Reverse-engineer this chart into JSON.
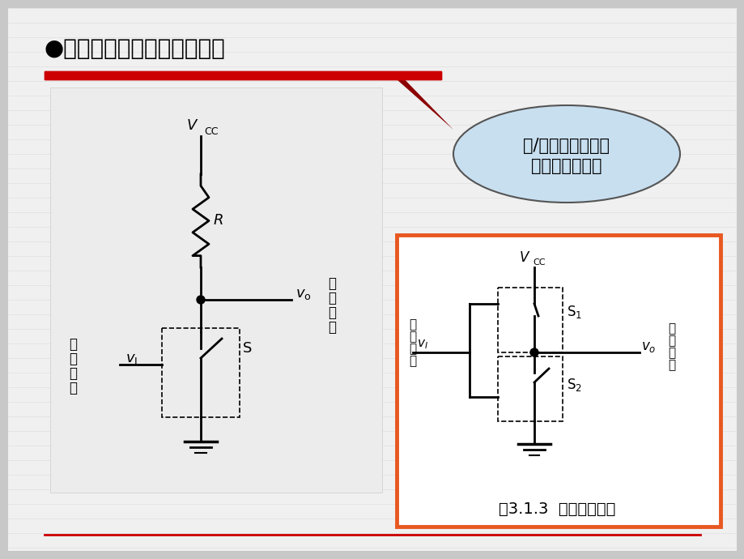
{
  "bg_color": "#e8e8e8",
  "slide_bg": "#d8d8d8",
  "content_bg": "#f0f0f0",
  "title_text": "●获得高、低电平的基本原理",
  "title_color": "#000000",
  "title_fontsize": 20,
  "red_bar_color": "#cc0000",
  "balloon_text": "高/低电平都允许有\n一定的变化范围",
  "balloon_bg": "#d0e8f8",
  "fig312_caption": "图3.1.3  互补开关电路",
  "orange_border": "#e85820"
}
